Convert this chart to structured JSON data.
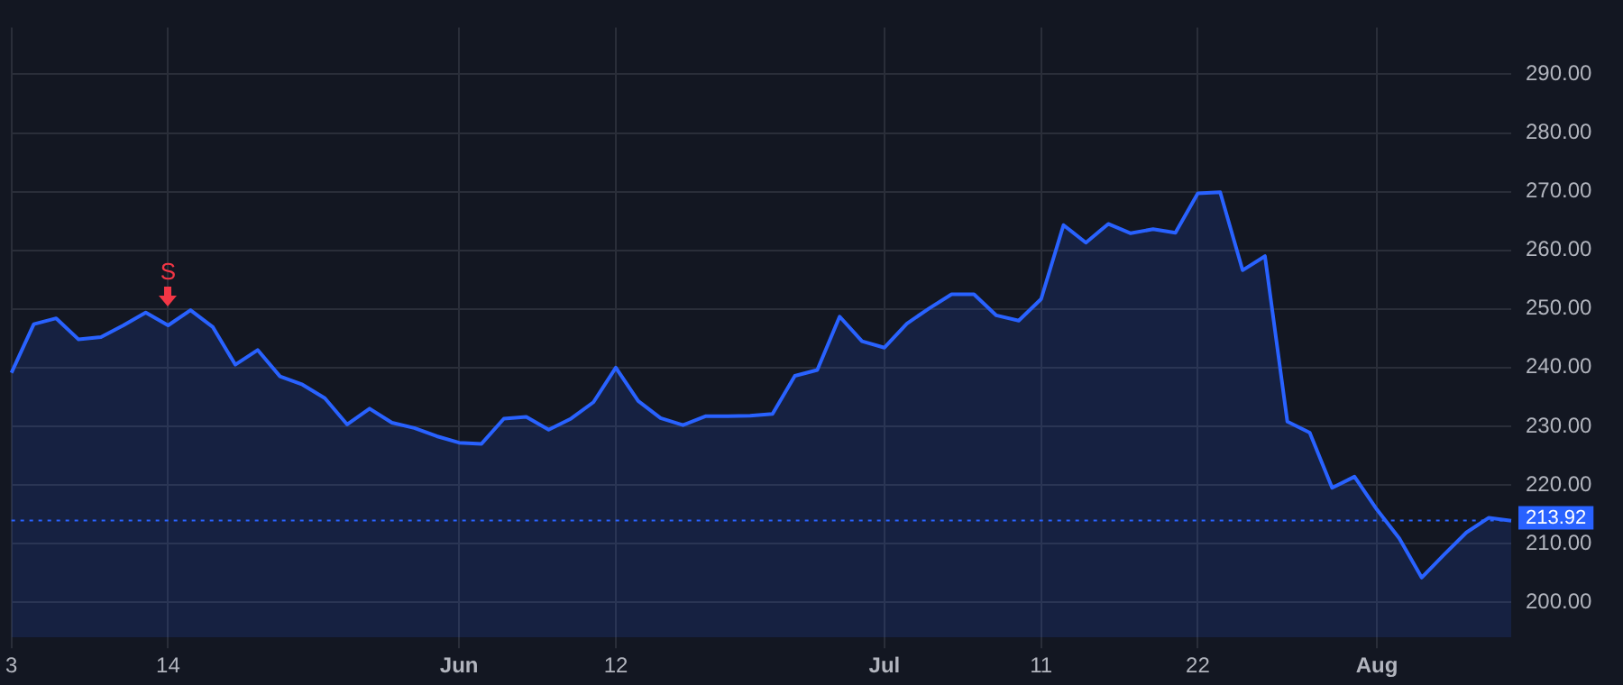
{
  "chart_data": {
    "type": "area",
    "categories": [
      "3",
      null,
      null,
      null,
      null,
      null,
      null,
      "14",
      null,
      null,
      null,
      null,
      null,
      null,
      null,
      null,
      null,
      null,
      null,
      null,
      "Jun",
      null,
      null,
      null,
      null,
      null,
      null,
      "12",
      null,
      null,
      null,
      null,
      null,
      null,
      null,
      null,
      null,
      null,
      null,
      "Jul",
      null,
      null,
      null,
      null,
      null,
      null,
      "11",
      null,
      null,
      null,
      null,
      null,
      null,
      "22",
      null,
      null,
      null,
      null,
      null,
      null,
      null,
      "Aug",
      null,
      null,
      null,
      null,
      null,
      null
    ],
    "series": [
      {
        "color": "#2962ff",
        "values": [
          239.1,
          247.4,
          248.4,
          244.8,
          245.2,
          247.2,
          249.4,
          247.2,
          249.8,
          246.9,
          240.5,
          243,
          238.5,
          237.1,
          234.8,
          230.3,
          233,
          230.6,
          229.7,
          228.3,
          227.2,
          227,
          231.3,
          231.6,
          229.4,
          231.3,
          234.1,
          240,
          234.3,
          231.4,
          230.2,
          231.7,
          231.7,
          231.8,
          232.1,
          238.6,
          239.6,
          248.7,
          244.5,
          243.4,
          247.5,
          250.1,
          252.5,
          252.5,
          248.9,
          248,
          251.7,
          264.3,
          261.3,
          264.5,
          262.9,
          263.6,
          263,
          269.7,
          269.9,
          256.6,
          259,
          230.8,
          228.9,
          219.5,
          221.4,
          215.8,
          210.9,
          204.2,
          208.1,
          211.9,
          214.4,
          213.9
        ]
      }
    ],
    "ylim": [
      194,
      298
    ],
    "yticks": [
      {
        "value": 200,
        "label": "200.00"
      },
      {
        "value": 210,
        "label": "210.00"
      },
      {
        "value": 220,
        "label": "220.00"
      },
      {
        "value": 230,
        "label": "230.00"
      },
      {
        "value": 240,
        "label": "240.00"
      },
      {
        "value": 250,
        "label": "250.00"
      },
      {
        "value": 260,
        "label": "260.00"
      },
      {
        "value": 270,
        "label": "270.00"
      },
      {
        "value": 280,
        "label": "280.00"
      },
      {
        "value": 290,
        "label": "290.00"
      }
    ],
    "ref_lines": [
      {
        "axis": "y",
        "value": 213.92,
        "label": "213.92",
        "color": "#2962ff",
        "line_style": "dotted"
      }
    ],
    "annotations": [
      {
        "text": "S",
        "x": "14",
        "y": 249.4
      }
    ],
    "grid": true,
    "legend": false,
    "marker": "none",
    "line_style": "solid"
  }
}
